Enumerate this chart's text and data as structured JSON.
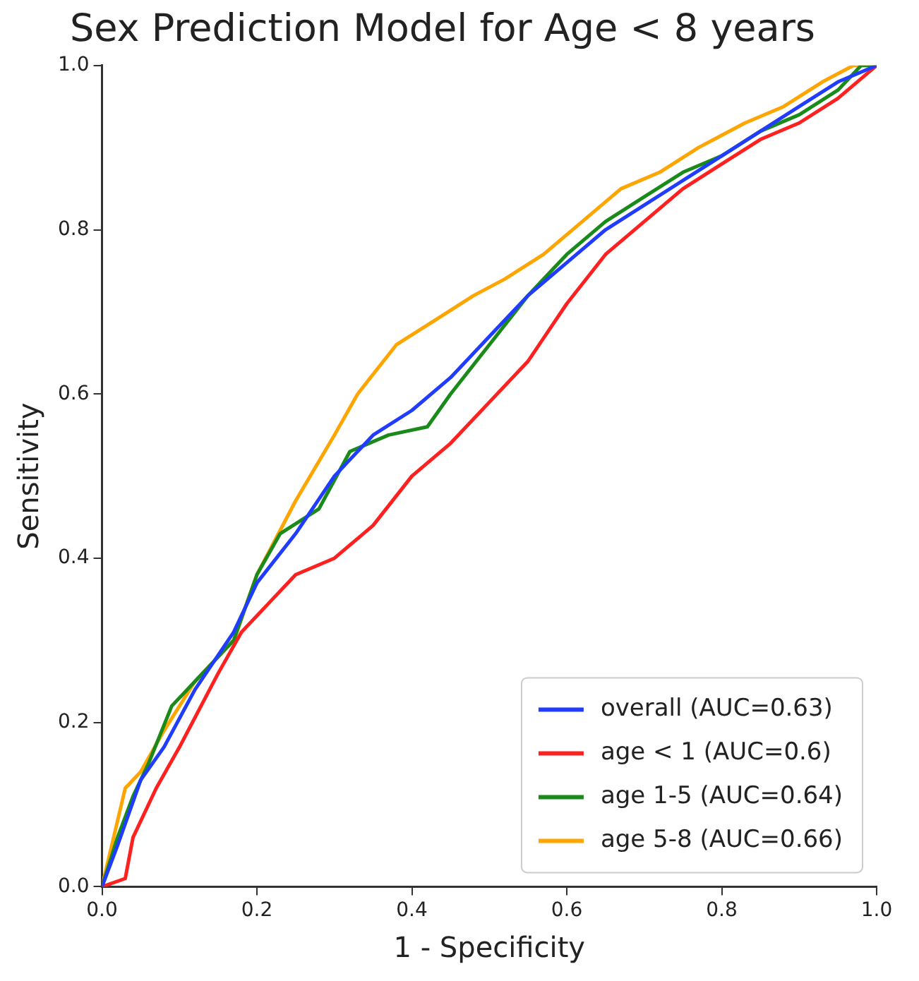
{
  "chart_data": {
    "type": "line",
    "title": "Sex Prediction Model for Age < 8 years",
    "xlabel": "1 - Specificity",
    "ylabel": "Sensitivity",
    "xlim": [
      0,
      1
    ],
    "ylim": [
      0,
      1
    ],
    "xticks": [
      {
        "value": 0,
        "label": "0.0"
      },
      {
        "value": 0.2,
        "label": "0.2"
      },
      {
        "value": 0.4,
        "label": "0.4"
      },
      {
        "value": 0.6,
        "label": "0.6"
      },
      {
        "value": 0.8,
        "label": "0.8"
      },
      {
        "value": 1,
        "label": "1.0"
      }
    ],
    "yticks": [
      {
        "value": 0,
        "label": "0.0"
      },
      {
        "value": 0.2,
        "label": "0.2"
      },
      {
        "value": 0.4,
        "label": "0.4"
      },
      {
        "value": 0.6,
        "label": "0.6"
      },
      {
        "value": 0.8,
        "label": "0.8"
      },
      {
        "value": 1,
        "label": "1.0"
      }
    ],
    "grid": false,
    "legend": "bottom right",
    "marker": "none",
    "line_style": "solid",
    "series": [
      {
        "name": "overall (AUC=0.63)",
        "color": "#1f3cff",
        "x": [
          0,
          0.02,
          0.05,
          0.08,
          0.12,
          0.17,
          0.2,
          0.25,
          0.3,
          0.35,
          0.4,
          0.45,
          0.5,
          0.55,
          0.6,
          0.65,
          0.7,
          0.75,
          0.8,
          0.85,
          0.9,
          0.95,
          1
        ],
        "values": [
          0,
          0.05,
          0.13,
          0.17,
          0.24,
          0.31,
          0.37,
          0.43,
          0.5,
          0.55,
          0.58,
          0.62,
          0.67,
          0.72,
          0.76,
          0.8,
          0.83,
          0.86,
          0.89,
          0.92,
          0.95,
          0.98,
          1
        ]
      },
      {
        "name": "age < 1 (AUC=0.6)",
        "color": "#ff2020",
        "x": [
          0,
          0.03,
          0.04,
          0.07,
          0.1,
          0.15,
          0.18,
          0.22,
          0.25,
          0.3,
          0.35,
          0.4,
          0.45,
          0.5,
          0.55,
          0.6,
          0.65,
          0.7,
          0.75,
          0.8,
          0.85,
          0.9,
          0.95,
          1
        ],
        "values": [
          0,
          0.01,
          0.06,
          0.12,
          0.17,
          0.26,
          0.31,
          0.35,
          0.38,
          0.4,
          0.44,
          0.5,
          0.54,
          0.59,
          0.64,
          0.71,
          0.77,
          0.81,
          0.85,
          0.88,
          0.91,
          0.93,
          0.96,
          1
        ]
      },
      {
        "name": "age 1-5 (AUC=0.64)",
        "color": "#1a8a1a",
        "x": [
          0,
          0.02,
          0.04,
          0.06,
          0.09,
          0.12,
          0.17,
          0.2,
          0.23,
          0.28,
          0.32,
          0.37,
          0.42,
          0.45,
          0.5,
          0.55,
          0.6,
          0.65,
          0.7,
          0.75,
          0.8,
          0.85,
          0.9,
          0.95,
          0.98,
          1
        ],
        "values": [
          0,
          0.06,
          0.11,
          0.15,
          0.22,
          0.25,
          0.3,
          0.38,
          0.43,
          0.46,
          0.53,
          0.55,
          0.56,
          0.6,
          0.66,
          0.72,
          0.77,
          0.81,
          0.84,
          0.87,
          0.89,
          0.92,
          0.94,
          0.97,
          1,
          1
        ]
      },
      {
        "name": "age 5-8 (AUC=0.66)",
        "color": "#ffa500",
        "x": [
          0,
          0.01,
          0.03,
          0.05,
          0.08,
          0.12,
          0.17,
          0.2,
          0.25,
          0.3,
          0.33,
          0.38,
          0.43,
          0.48,
          0.52,
          0.57,
          0.62,
          0.67,
          0.72,
          0.77,
          0.83,
          0.88,
          0.93,
          0.97,
          1
        ],
        "values": [
          0,
          0.04,
          0.12,
          0.14,
          0.19,
          0.25,
          0.3,
          0.38,
          0.47,
          0.55,
          0.6,
          0.66,
          0.69,
          0.72,
          0.74,
          0.77,
          0.81,
          0.85,
          0.87,
          0.9,
          0.93,
          0.95,
          0.98,
          1,
          1
        ]
      }
    ]
  }
}
